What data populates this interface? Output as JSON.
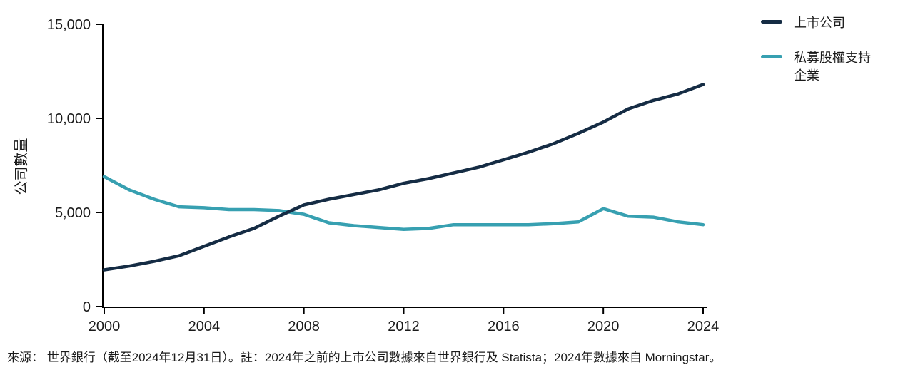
{
  "chart_data": {
    "type": "line",
    "title": "",
    "ylabel": "公司數量",
    "xlabel": "",
    "grid": false,
    "legend_position": "top-right",
    "xlim": [
      2000,
      2024
    ],
    "ylim": [
      0,
      15000
    ],
    "xticks": [
      2000,
      2004,
      2008,
      2012,
      2016,
      2020,
      2024
    ],
    "yticks": [
      0,
      5000,
      10000,
      15000
    ],
    "ytick_labels": [
      "0",
      "5,000",
      "10,000",
      "15,000"
    ],
    "x": [
      2000,
      2001,
      2002,
      2003,
      2004,
      2005,
      2006,
      2007,
      2008,
      2009,
      2010,
      2011,
      2012,
      2013,
      2014,
      2015,
      2016,
      2017,
      2018,
      2019,
      2020,
      2021,
      2022,
      2023,
      2024
    ],
    "series": [
      {
        "name": "上市公司",
        "color": "#152c44",
        "values": [
          1950,
          2150,
          2400,
          2700,
          3200,
          3700,
          4150,
          4800,
          5400,
          5700,
          5950,
          6200,
          6550,
          6800,
          7100,
          7400,
          7800,
          8200,
          8650,
          9200,
          9800,
          10500,
          10950,
          11300,
          11800
        ]
      },
      {
        "name": "私募股權支持企業",
        "color": "#37a0b1",
        "values": [
          6900,
          6200,
          5700,
          5300,
          5250,
          5150,
          5150,
          5100,
          4900,
          4450,
          4300,
          4200,
          4100,
          4150,
          4350,
          4350,
          4350,
          4350,
          4400,
          4500,
          5200,
          4800,
          4750,
          4500,
          4350
        ]
      }
    ]
  },
  "axes": {
    "axis_color": "#000000",
    "tick_text_color": "#1a1a1a"
  },
  "footer": {
    "source_note": "來源： 世界銀行（截至2024年12月31日）。註：2024年之前的上市公司數據來自世界銀行及 Statista；2024年數據來自 Morningstar。"
  }
}
